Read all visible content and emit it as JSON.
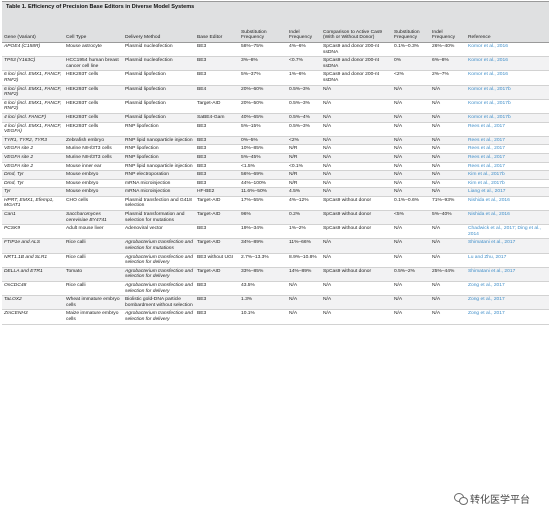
{
  "title": "Table 1.  Efficiency of Precision Base Editors in Diverse Model Systems",
  "headers": [
    "Gene (Variant)",
    "Cell Type",
    "Delivery Method",
    "Base Editor",
    "Substitution Frequency",
    "Indel Frequency",
    "Comparison to Active Cas9 (With or Without Donor)",
    "Substitution Frequency",
    "Indel Frequency",
    "Reference"
  ],
  "rows": [
    [
      "APOE4 (C158R)",
      "Mouse astrocyte",
      "Plasmid nucleofection",
      "BE3",
      "58%–75%",
      "4%–6%",
      "SpCas9 and donor 200-nt ssDNA",
      "0.1%–0.3%",
      "26%–40%",
      "Komor et al., 2016"
    ],
    [
      "TP53 (Y163C)",
      "HCC1954 human breast cancer cell line",
      "Plasmid nucleofection",
      "BE3",
      "3%–8%",
      "<0.7%",
      "SpCas9 and donor 200-nt ssDNA",
      "0%",
      "6%–8%",
      "Komor et al., 2016"
    ],
    [
      "6 loci (incl. EMX1, FANCF, RNF2)",
      "HEK293T cells",
      "Plasmid lipofection",
      "BE3",
      "5%–37%",
      "1%–6%",
      "SpCas9 and donor 200-nt ssDNA",
      "<2%",
      "2%–7%",
      "Komor et al., 2016"
    ],
    [
      "6 loci (incl. EMX1, FANCF, RNF2)",
      "HEK293T cells",
      "Plasmid lipofection",
      "BE4",
      "20%–60%",
      "0.5%–3%",
      "N/A",
      "N/A",
      "N/A",
      "Komor et al., 2017b"
    ],
    [
      "6 loci (incl. EMX1, FANCF, RNF2)",
      "HEK293T cells",
      "Plasmid lipofection",
      "Target-AID",
      "20%–50%",
      "0.5%–3%",
      "N/A",
      "N/A",
      "N/A",
      "Komor et al., 2017b"
    ],
    [
      "4 loci (incl. FANCF)",
      "HEK293T cells",
      "Plasmid lipofection",
      "SaBE4-Gam",
      "40%–65%",
      "0.5%–4%",
      "N/A",
      "N/A",
      "N/A",
      "Komor et al., 2017b"
    ],
    [
      "4 loci (incl. EMX1, FANCF, VEGFA)",
      "HEK293T cells",
      "RNP lipofection",
      "BE3",
      "5%–15%",
      "0.5%–3%",
      "N/A",
      "N/A",
      "N/A",
      "Rees et al., 2017"
    ],
    [
      "TYR1, TYR2, TYR3",
      "Zebrafish embryo",
      "RNP lipid nanoparticle injection",
      "BE3",
      "0%–5%",
      "<2%",
      "N/A",
      "N/A",
      "N/A",
      "Rees et al., 2017"
    ],
    [
      "VEGFA site 2",
      "Murine NIH/3T3 cells",
      "RNP lipofection",
      "BE3",
      "10%–85%",
      "N/R",
      "N/A",
      "N/A",
      "N/A",
      "Rees et al., 2017"
    ],
    [
      "VEGFA site 2",
      "Murine NIH/3T3 cells",
      "RNP lipofection",
      "BE3",
      "5%–45%",
      "N/R",
      "N/A",
      "N/A",
      "N/A",
      "Rees et al., 2017"
    ],
    [
      "VEGFA site 2",
      "Mouse inner ear",
      "RNP lipid nanoparticle injection",
      "BE3",
      "<1.5%",
      "<0.1%",
      "N/A",
      "N/A",
      "N/A",
      "Rees et al., 2017"
    ],
    [
      "Dmd, Tyr",
      "Mouse embryo",
      "RNP electroporation",
      "BE3",
      "56%–69%",
      "N/R",
      "N/A",
      "N/A",
      "N/A",
      "Kim et al., 2017b"
    ],
    [
      "Dmd, Tyr",
      "Mouse embryo",
      "mRNA microinjection",
      "BE3",
      "44%–100%",
      "N/R",
      "N/A",
      "N/A",
      "N/A",
      "Kim et al., 2017b"
    ],
    [
      "Tyr",
      "Mouse embryo",
      "mRNA microinjection",
      "HF-BE2",
      "11.6%–50%",
      "4.5%",
      "N/A",
      "N/A",
      "N/A",
      "Liang et al., 2017"
    ],
    [
      "HPRT, EMX1, Efemp1, MGAT1",
      "CHO cells",
      "Plasmid transfection and G418 selection",
      "Target-AID",
      "17%–55%",
      "4%–12%",
      "SpCas9 without donor",
      "0.1%–0.6%",
      "71%–93%",
      "Nishida et al., 2016"
    ],
    [
      "Can1",
      "Saccharomyces cerevisiae BY4741",
      "Plasmid transformation and selection for mutations",
      "Target-AID",
      "96%",
      "0.2%",
      "SpCas9 without donor",
      "<5%",
      "5%–40%",
      "Nishida et al., 2016"
    ],
    [
      "PCSK9",
      "Adult mouse liver",
      "Adenoviral vector",
      "BE3",
      "19%–34%",
      "1%–2%",
      "SpCas9 without donor",
      "N/A",
      "N/A",
      "Chadwick et al., 2017; Ding et al., 2014"
    ],
    [
      "FTIP1e and ALS",
      "Rice calli",
      "Agrobacterium transfection and selection for mutations",
      "Target-AID",
      "34%–89%",
      "11%–66%",
      "N/A",
      "N/A",
      "N/A",
      "Shimatani et al., 2017"
    ],
    [
      "NRT1.1B and SLR1",
      "Rice calli",
      "Agrobacterium transfection and selection for delivery",
      "BE3 without UGI",
      "2.7%–13.3%",
      "8.9%–10.8%",
      "N/A",
      "N/A",
      "N/A",
      "Lu and Zhu, 2017"
    ],
    [
      "DELLA and ETR1",
      "Tomato",
      "Agrobacterium transfection and selection for delivery",
      "Target-AID",
      "33%–85%",
      "14%–89%",
      "SpCas9 without donor",
      "0.5%–2%",
      "25%–44%",
      "Shimatani et al., 2017"
    ],
    [
      "OsCDC48",
      "Rice calli",
      "Agrobacterium transfection and selection for delivery",
      "BE3",
      "43.5%",
      "N/A",
      "N/A",
      "N/A",
      "N/A",
      "Zong et al., 2017"
    ],
    [
      "TaLOX2",
      "Wheat immature embryo cells",
      "Biolistic gold-DNA particle bombardment without selection",
      "BE3",
      "1.3%",
      "N/A",
      "N/A",
      "N/A",
      "N/A",
      "Zong et al., 2017"
    ],
    [
      "ZmCENH3",
      "Maize immature embryo cells",
      "Agrobacterium transfection and selection for delivery",
      "BE3",
      "10.1%",
      "N/A",
      "N/A",
      "N/A",
      "N/A",
      "Zong et al., 2017"
    ]
  ],
  "watermark": {
    "text": "转化医学平台",
    "icon": "wechat-icon"
  }
}
